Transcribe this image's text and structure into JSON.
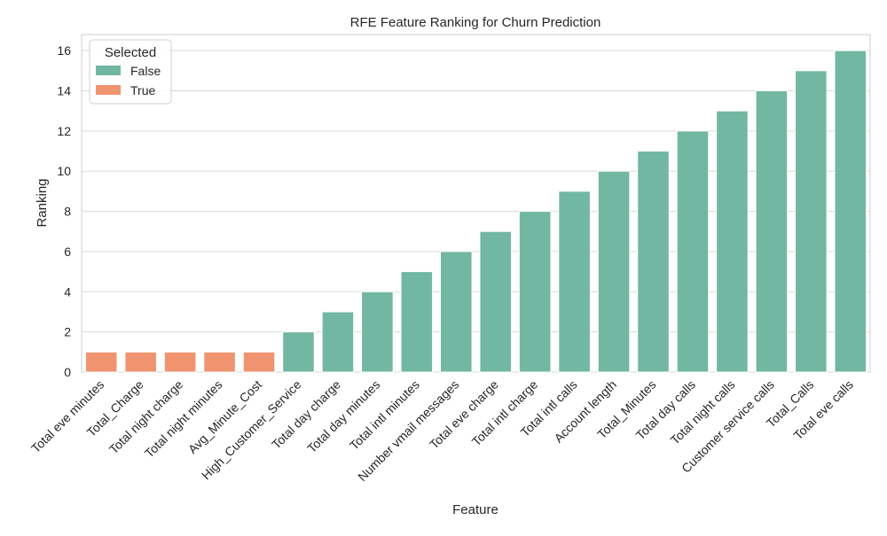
{
  "colors": {
    "false_color": "#72b7a1",
    "true_color": "#f0946f",
    "grid": "#d9d9d9",
    "text": "#262626",
    "axes_edge": "#cccccc"
  },
  "chart_data": {
    "type": "bar",
    "title": "RFE Feature Ranking for Churn Prediction",
    "xlabel": "Feature",
    "ylabel": "Ranking",
    "ylim": [
      0,
      16.8
    ],
    "yticks": [
      0,
      2,
      4,
      6,
      8,
      10,
      12,
      14,
      16
    ],
    "grid": "y",
    "legend": {
      "title": "Selected",
      "placement": "top-left",
      "entries": [
        "False",
        "True"
      ]
    },
    "categories": [
      "Total eve minutes",
      "Total_Charge",
      "Total night charge",
      "Total night minutes",
      "Avg_Minute_Cost",
      "High_Customer_Service",
      "Total day charge",
      "Total day minutes",
      "Total intl minutes",
      "Number vmail messages",
      "Total eve charge",
      "Total intl charge",
      "Total intl calls",
      "Account length",
      "Total_Minutes",
      "Total day calls",
      "Total night calls",
      "Customer service calls",
      "Total_Calls",
      "Total eve calls"
    ],
    "values": [
      1,
      1,
      1,
      1,
      1,
      2,
      3,
      4,
      5,
      6,
      7,
      8,
      9,
      10,
      11,
      12,
      13,
      14,
      15,
      16
    ],
    "selected": [
      true,
      true,
      true,
      true,
      true,
      false,
      false,
      false,
      false,
      false,
      false,
      false,
      false,
      false,
      false,
      false,
      false,
      false,
      false,
      false
    ]
  }
}
